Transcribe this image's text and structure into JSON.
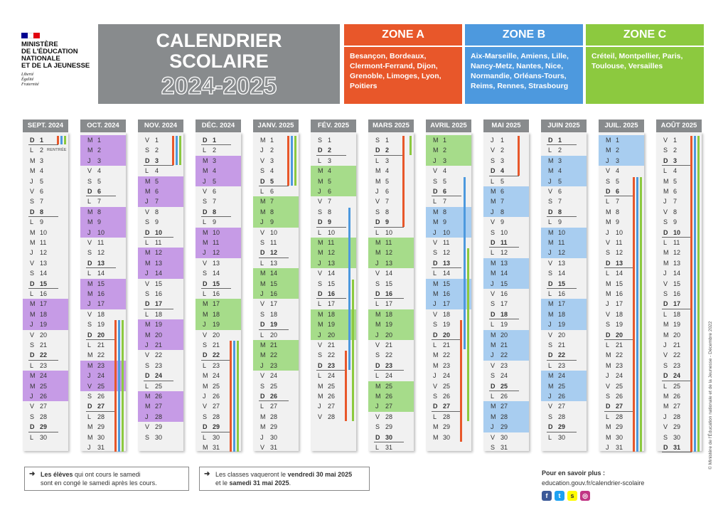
{
  "ministry": {
    "name_lines": [
      "MINISTÈRE",
      "DE L'ÉDUCATION",
      "NATIONALE",
      "ET DE LA JEUNESSE"
    ],
    "motto_lines": [
      "Liberté",
      "Égalité",
      "Fraternité"
    ]
  },
  "title": {
    "line1": "CALENDRIER",
    "line2": "SCOLAIRE",
    "year": "2024-2025"
  },
  "zones": [
    {
      "label": "ZONE A",
      "color": "#e8572a",
      "cities": "Besançon, Bordeaux, Clermont-Ferrand, Dijon, Grenoble, Limoges, Lyon, Poitiers"
    },
    {
      "label": "ZONE B",
      "color": "#4d99de",
      "cities": "Aix-Marseille, Amiens, Lille, Nancy-Metz, Nantes, Nice, Normandie, Orléans-Tours, Reims, Rennes, Strasbourg"
    },
    {
      "label": "ZONE C",
      "color": "#8cc93f",
      "cities": "Créteil, Montpellier, Paris, Toulouse, Versailles"
    }
  ],
  "months": [
    {
      "label": "SEPT. 2024",
      "days": 30,
      "start": 0
    },
    {
      "label": "OCT. 2024",
      "days": 31,
      "start": 2
    },
    {
      "label": "NOV. 2024",
      "days": 30,
      "start": 5
    },
    {
      "label": "DÉC. 2024",
      "days": 31,
      "start": 0
    },
    {
      "label": "JANV. 2025",
      "days": 31,
      "start": 3
    },
    {
      "label": "FÉV. 2025",
      "days": 28,
      "start": 6
    },
    {
      "label": "MARS 2025",
      "days": 31,
      "start": 6
    },
    {
      "label": "AVRIL 2025",
      "days": 30,
      "start": 2
    },
    {
      "label": "MAI 2025",
      "days": 31,
      "start": 4
    },
    {
      "label": "JUIN 2025",
      "days": 30,
      "start": 0
    },
    {
      "label": "JUIL. 2025",
      "days": 31,
      "start": 2
    },
    {
      "label": "AOÛT 2025",
      "days": 31,
      "start": 5
    }
  ],
  "day_letters": [
    "D",
    "L",
    "M",
    "M",
    "J",
    "V",
    "S"
  ],
  "rentree_label": "RENTRÉE",
  "notes": [
    {
      "prefix": "",
      "bold1": "Les élèves",
      "text1": " qui ont cours le samedi",
      "text2": "sont en congé le samedi après les cours.",
      "bold2": "",
      "suffix": ""
    },
    {
      "prefix": "Les classes vaqueront le ",
      "bold1": "vendredi 30 mai 2025",
      "text1": "",
      "text2": "et le ",
      "bold2": "samedi 31 mai 2025",
      "suffix": "."
    }
  ],
  "more_info": {
    "label": "Pour en savoir plus :",
    "url": "education.gouv.fr/calendrier-scolaire"
  },
  "social_icons": [
    "facebook-icon",
    "twitter-icon",
    "snapchat-icon",
    "instagram-icon"
  ],
  "copyright": "© Ministère de l'Éducation nationale et de la Jeunesse - Décembre 2022",
  "colors": {
    "purple": "#c69be6",
    "green": "#a6dc8a",
    "blue": "#a8cdf0",
    "header_gray": "#888b8d",
    "orange": "#e8572a",
    "mid_blue": "#4d99de",
    "lime": "#8cc93f"
  }
}
